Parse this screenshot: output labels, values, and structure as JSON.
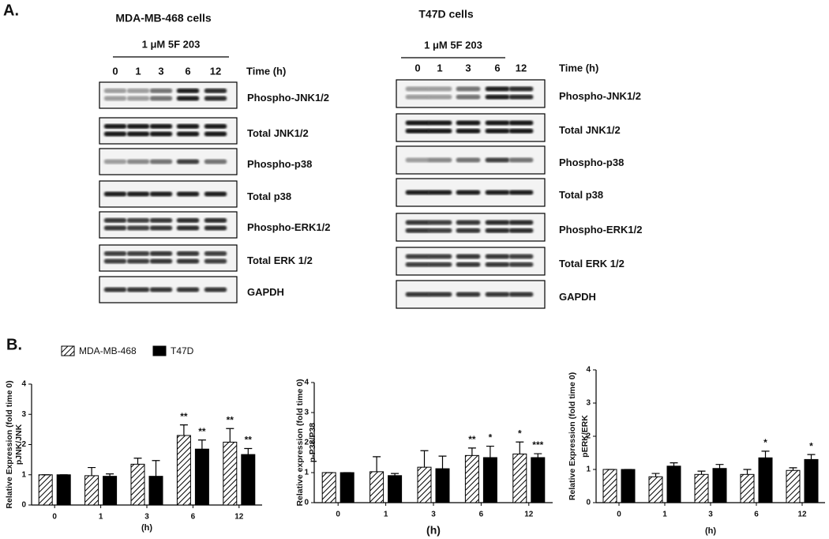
{
  "panel_a": {
    "label": "A.",
    "blots": [
      {
        "title": "MDA-MB-468 cells",
        "treatment": "1  μM 5F 203",
        "time_label": "Time (h)",
        "lanes": [
          "0",
          "1",
          "3",
          "6",
          "12"
        ],
        "rows": [
          "Phospho-JNK1/2",
          "Total JNK1/2",
          "Phospho-p38",
          "Total p38",
          "Phospho-ERK1/2",
          "Total ERK 1/2",
          "GAPDH"
        ]
      },
      {
        "title": "T47D cells",
        "treatment": "1  μM 5F 203",
        "time_label": "Time (h)",
        "lanes": [
          "0",
          "1",
          "3",
          "6",
          "12"
        ],
        "rows": [
          "Phospho-JNK1/2",
          "Total JNK1/2",
          "Phospho-p38",
          "Total p38",
          "Phospho-ERK1/2",
          "Total ERK 1/2",
          "GAPDH"
        ]
      }
    ]
  },
  "panel_b": {
    "label": "B."
  },
  "chart_data": [
    {
      "type": "bar",
      "xlabel": "(h)",
      "ylabel": [
        "Relative Expression (fold time 0)",
        "pJNK/JNK"
      ],
      "categories": [
        "0",
        "1",
        "3",
        "6",
        "12"
      ],
      "ylim": [
        0,
        4
      ],
      "yticks": [
        0,
        1,
        2,
        3,
        4
      ],
      "series": [
        {
          "name": "MDA-MB-468",
          "color": "#000000",
          "hatch": true,
          "values": [
            1,
            0.97,
            1.35,
            2.3,
            2.08
          ],
          "errors": [
            0,
            0.27,
            0.2,
            0.35,
            0.45
          ],
          "annotations": [
            null,
            null,
            null,
            "**",
            "**"
          ]
        },
        {
          "name": "T47D",
          "color": "#000000",
          "hatch": false,
          "values": [
            1,
            0.95,
            0.95,
            1.85,
            1.67
          ],
          "errors": [
            0,
            0.08,
            0.52,
            0.3,
            0.2
          ],
          "annotations": [
            null,
            null,
            null,
            "**",
            "**"
          ]
        }
      ]
    },
    {
      "type": "bar",
      "xlabel": "(h)",
      "ylabel": [
        "Relative expression (fold time 0)",
        "p-P38/P38"
      ],
      "categories": [
        "0",
        "1",
        "3",
        "6",
        "12"
      ],
      "ylim": [
        0,
        4
      ],
      "yticks": [
        0,
        1,
        2,
        3,
        4
      ],
      "series": [
        {
          "color": "#000000",
          "hatch": true,
          "values": [
            1,
            1.03,
            1.18,
            1.57,
            1.62
          ],
          "errors": [
            0,
            0.5,
            0.55,
            0.25,
            0.4
          ],
          "annotations": [
            null,
            null,
            null,
            "**",
            "*"
          ]
        },
        {
          "color": "#000000",
          "hatch": false,
          "values": [
            1,
            0.9,
            1.13,
            1.5,
            1.5
          ],
          "errors": [
            0,
            0.07,
            0.42,
            0.38,
            0.13
          ],
          "annotations": [
            null,
            null,
            null,
            "*",
            "***"
          ]
        }
      ]
    },
    {
      "type": "bar",
      "xlabel": "(h)",
      "ylabel": [
        "Relative Expression (fold time 0)",
        "pERK/ERK"
      ],
      "categories": [
        "0",
        "1",
        "3",
        "6",
        "12"
      ],
      "ylim": [
        0,
        4
      ],
      "yticks": [
        0,
        1,
        2,
        3,
        4
      ],
      "series": [
        {
          "color": "#000000",
          "hatch": true,
          "values": [
            1,
            0.78,
            0.85,
            0.85,
            0.97
          ],
          "errors": [
            0,
            0.1,
            0.1,
            0.15,
            0.08
          ],
          "annotations": [
            null,
            null,
            null,
            null,
            null
          ]
        },
        {
          "color": "#000000",
          "hatch": false,
          "values": [
            1,
            1.1,
            1.03,
            1.35,
            1.3
          ],
          "errors": [
            0,
            0.1,
            0.12,
            0.2,
            0.15
          ],
          "annotations": [
            null,
            null,
            null,
            "*",
            "*"
          ]
        }
      ]
    }
  ]
}
